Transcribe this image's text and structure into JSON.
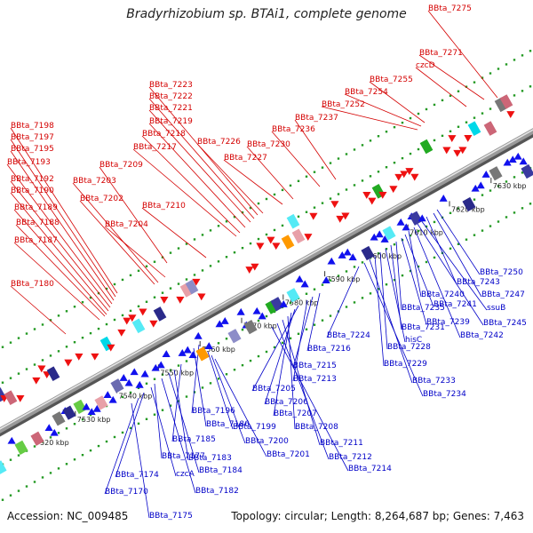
{
  "title": "Bradyrhizobium sp. BTAi1, complete genome",
  "footer": {
    "accession": "Accession: NC_009485",
    "info": "Topology: circular; Length: 8,264,687 bp; Genes: 7,463"
  },
  "colors": {
    "forward_label": "#d40000",
    "reverse_label": "#0000c8",
    "forward_gene": "#ee1111",
    "reverse_gene": "#1111ee",
    "backbone": "#888888",
    "dots": "#229922"
  },
  "ticks": [
    "7520 kbp",
    "7530 kbp",
    "7540 kbp",
    "7550 kbp",
    "7560 kbp",
    "7570 kbp",
    "7580 kbp",
    "7590 kbp",
    "7600 kbp",
    "7610 kbp",
    "7620 kbp",
    "7630 kbp"
  ],
  "forward_labels": [
    "BBta_7275",
    "BBta_7271",
    "czcD",
    "BBta_7255",
    "BBta_7254",
    "BBta_7252",
    "BBta_7237",
    "BBta_7236",
    "BBta_7230",
    "BBta_7227",
    "BBta_7226",
    "BBta_7223",
    "BBta_7222",
    "BBta_7221",
    "BBta_7219",
    "BBta_7218",
    "BBta_7217",
    "BBta_7210",
    "BBta_7209",
    "BBta_7204",
    "BBta_7203",
    "BBta_7202",
    "BBta_7198",
    "BBta_7197",
    "BBta_7195",
    "BBta_7193",
    "BBta_7192",
    "BBta_7190",
    "BBta_7189",
    "BBta_7188",
    "BBta_7187",
    "BBta_7180"
  ],
  "reverse_labels": [
    "BBta_7250",
    "BBta_7247",
    "BBta_7243",
    "ssuB",
    "BBta_7245",
    "BBta_7242",
    "BBta_7240",
    "BBta_7241",
    "BBta_7239",
    "BBta_7235",
    "BBta_7231",
    "hisC",
    "BBta_7228",
    "BBta_7229",
    "BBta_7233",
    "BBta_7234",
    "BBta_7224",
    "BBta_7216",
    "BBta_7215",
    "BBta_7213",
    "BBta_7205",
    "BBta_7206",
    "BBta_7207",
    "BBta_7208",
    "BBta_7211",
    "BBta_7212",
    "BBta_7214",
    "BBta_7196",
    "BBta_7186",
    "BBta_7199",
    "BBta_7200",
    "BBta_7201",
    "BBta_7185",
    "BBta_7183",
    "BBta_7184",
    "BBta_7182",
    "BBta_7177",
    "czcA",
    "BBta_7174",
    "BBta_7170",
    "BBta_7175"
  ]
}
